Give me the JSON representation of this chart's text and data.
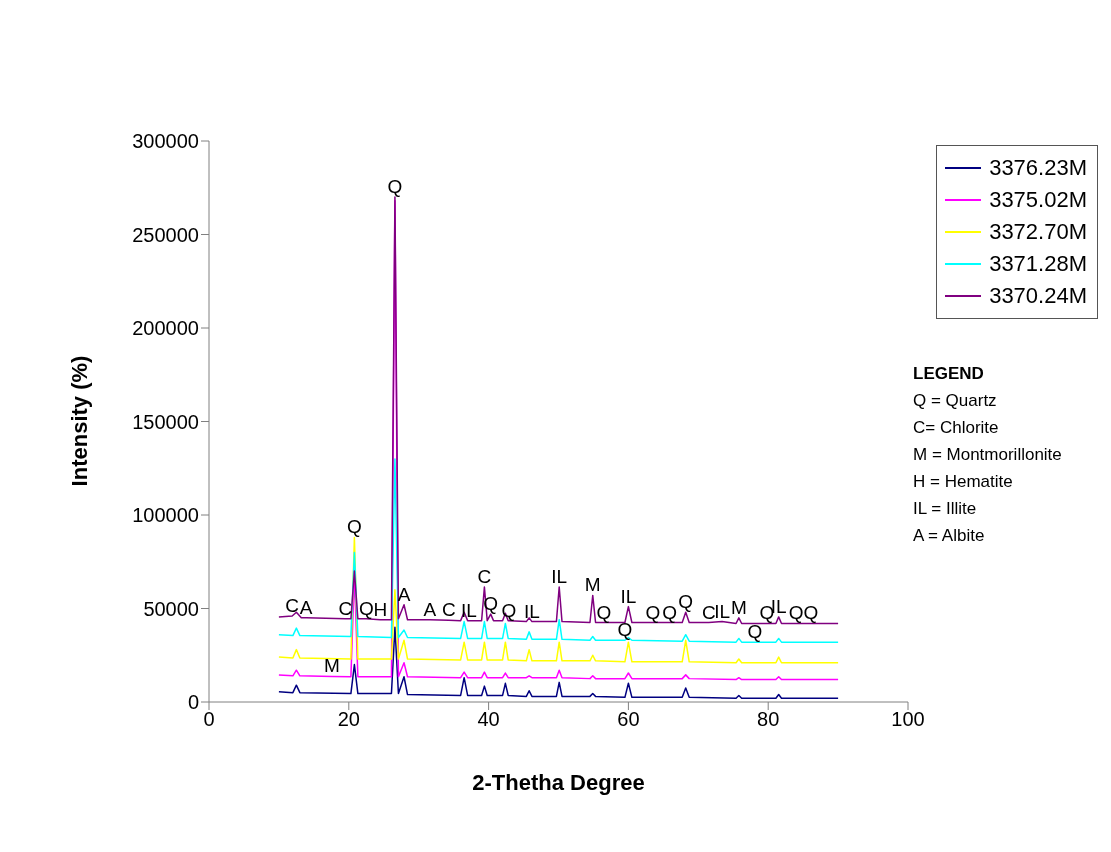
{
  "chart_data": {
    "type": "line",
    "xlabel": "2-Thetha Degree",
    "ylabel": "Intensity (%)",
    "xlim": [
      0,
      100
    ],
    "xticks": [
      0,
      20,
      40,
      60,
      80,
      100
    ],
    "ylim": [
      0,
      300000
    ],
    "yticks": [
      0,
      50000,
      100000,
      150000,
      200000,
      250000,
      300000
    ],
    "grid": false,
    "legend": "top right",
    "marker": "none",
    "line_style": "solid",
    "x": [
      10,
      12.0,
      12.5,
      13.0,
      20.3,
      20.8,
      21.3,
      26.1,
      26.6,
      27.1,
      27.9,
      28.4,
      36.0,
      36.5,
      37.0,
      39.0,
      39.4,
      39.8,
      42.0,
      42.4,
      42.8,
      45.4,
      45.8,
      46.2,
      49.7,
      50.1,
      50.5,
      54.5,
      54.9,
      55.3,
      59.5,
      60,
      60.5,
      67.7,
      68.2,
      68.7,
      75.4,
      75.8,
      76.2,
      81.1,
      81.5,
      81.9,
      90
    ],
    "series": [
      {
        "name": "3376.23M",
        "color": "#000080",
        "values": [
          5500,
          5000,
          9000,
          5000,
          4500,
          20000,
          4500,
          4500,
          40000,
          4500,
          13500,
          4000,
          3500,
          13000,
          3500,
          3500,
          8500,
          3500,
          3500,
          10000,
          3500,
          3000,
          6000,
          3000,
          3000,
          10500,
          3000,
          3000,
          4500,
          3000,
          2500,
          10000,
          2500,
          2500,
          7500,
          2500,
          2000,
          3500,
          2000,
          2000,
          4000,
          2000,
          2000
        ]
      },
      {
        "name": "3375.02M",
        "color": "#ff00ff",
        "x": [
          10,
          12.0,
          12.5,
          13.0,
          17.6,
          20.3,
          20.8,
          21.3,
          26.1,
          26.6,
          27.1,
          27.9,
          28.4,
          36.0,
          36.5,
          37.0,
          39.0,
          39.4,
          39.8,
          42.0,
          42.4,
          42.8,
          45.4,
          45.8,
          46.2,
          49.7,
          50.1,
          50.5,
          54.5,
          54.9,
          55.3,
          59.5,
          60,
          60.5,
          67.7,
          68.2,
          68.7,
          75.4,
          75.8,
          76.2,
          81.1,
          81.5,
          81.9,
          90
        ],
        "values": [
          14500,
          14000,
          17000,
          14000,
          13700,
          13500,
          68000,
          13500,
          13500,
          268000,
          13500,
          21000,
          13500,
          13000,
          16000,
          13000,
          13000,
          16000,
          13000,
          13000,
          15500,
          13000,
          13000,
          14000,
          13000,
          13000,
          17000,
          13000,
          12500,
          14000,
          12500,
          12500,
          15500,
          12500,
          12500,
          14500,
          12500,
          12000,
          13000,
          12000,
          12000,
          13500,
          12000,
          12000
        ]
      },
      {
        "name": "3372.70M",
        "color": "#ffff00",
        "values": [
          24000,
          23500,
          28000,
          23500,
          23000,
          88000,
          23000,
          23000,
          60000,
          23000,
          33000,
          23000,
          22500,
          32000,
          22500,
          22500,
          32000,
          22500,
          22500,
          32000,
          22500,
          22000,
          28000,
          22000,
          22000,
          32000,
          22000,
          22000,
          25000,
          22000,
          21500,
          32000,
          21500,
          21500,
          33000,
          21500,
          21000,
          23000,
          21000,
          21000,
          24000,
          21000,
          21000
        ]
      },
      {
        "name": "3371.28M",
        "color": "#00ffff",
        "x": [
          10,
          12.0,
          12.5,
          13.0,
          20.3,
          20.8,
          21.3,
          26.1,
          26.6,
          27.1,
          27.9,
          28.4,
          36.0,
          36.5,
          37.0,
          39.0,
          39.4,
          39.8,
          42.0,
          42.4,
          42.8,
          45.4,
          45.8,
          46.2,
          49.7,
          50.1,
          50.5,
          54.5,
          54.9,
          55.3,
          59.5,
          60,
          60.5,
          67.7,
          68.2,
          68.7,
          75.4,
          75.8,
          76.2,
          78.1,
          81.1,
          81.5,
          81.9,
          90
        ],
        "values": [
          36000,
          35500,
          39500,
          35500,
          35000,
          80000,
          35000,
          34500,
          130000,
          34500,
          38500,
          34500,
          34000,
          43000,
          34000,
          34000,
          43000,
          34000,
          34000,
          42000,
          34000,
          33500,
          37500,
          33500,
          33500,
          44000,
          33500,
          33000,
          35000,
          33000,
          33000,
          34500,
          33000,
          32500,
          36000,
          32500,
          32000,
          34000,
          32000,
          32000,
          32000,
          34000,
          32000,
          32000
        ]
      },
      {
        "name": "3370.24M",
        "color": "#800080",
        "x": [
          10,
          11.9,
          12.5,
          13.2,
          13.9,
          19.5,
          20.3,
          20.8,
          21.3,
          22.5,
          24.5,
          26.1,
          26.6,
          27.1,
          27.9,
          28.4,
          31.6,
          34.3,
          36.0,
          36.5,
          37.0,
          37.2,
          39.0,
          39.4,
          39.8,
          40.3,
          40.7,
          42.0,
          42.4,
          42.8,
          42.9,
          45.4,
          45.8,
          46.2,
          49.7,
          50.1,
          50.5,
          54.5,
          54.9,
          55.3,
          56.5,
          59.5,
          60,
          60.5,
          63.5,
          65.9,
          67.7,
          68.2,
          68.7,
          71.5,
          73.4,
          75.4,
          75.8,
          76.2,
          79.8,
          81.1,
          81.5,
          81.9,
          84.0,
          86.1,
          90
        ],
        "values": [
          45500,
          46000,
          48000,
          45000,
          45000,
          44500,
          44500,
          70000,
          44500,
          44500,
          44000,
          44000,
          270000,
          44500,
          52000,
          44000,
          44000,
          43700,
          43500,
          48000,
          43500,
          43500,
          43500,
          61500,
          43500,
          47000,
          43500,
          43500,
          47500,
          43500,
          43500,
          43000,
          45000,
          43000,
          43000,
          61500,
          43000,
          42500,
          57000,
          42500,
          42500,
          42500,
          51000,
          42500,
          42500,
          42500,
          42500,
          48000,
          42500,
          42500,
          43000,
          42000,
          45000,
          42000,
          42000,
          42000,
          45500,
          42000,
          42000,
          42000,
          42000
        ]
      }
    ],
    "annotations": [
      {
        "text": "C",
        "x": 11.9,
        "y": 46000
      },
      {
        "text": "A",
        "x": 13.9,
        "y": 45000
      },
      {
        "text": "M",
        "x": 17.6,
        "y": 13700
      },
      {
        "text": "Q",
        "x": 20.8,
        "y": 88000
      },
      {
        "text": "C",
        "x": 19.5,
        "y": 44500
      },
      {
        "text": "Q",
        "x": 22.5,
        "y": 44500
      },
      {
        "text": "H",
        "x": 24.5,
        "y": 44000
      },
      {
        "text": "Q",
        "x": 26.6,
        "y": 270000
      },
      {
        "text": "A",
        "x": 27.9,
        "y": 52000
      },
      {
        "text": "A",
        "x": 31.6,
        "y": 44000
      },
      {
        "text": "C",
        "x": 34.3,
        "y": 43700
      },
      {
        "text": "IL",
        "x": 37.2,
        "y": 43500
      },
      {
        "text": "C",
        "x": 39.4,
        "y": 61500
      },
      {
        "text": "Q",
        "x": 40.3,
        "y": 47000
      },
      {
        "text": "Q",
        "x": 42.9,
        "y": 43500
      },
      {
        "text": "IL",
        "x": 46.2,
        "y": 43000
      },
      {
        "text": "IL",
        "x": 50.1,
        "y": 61500
      },
      {
        "text": "M",
        "x": 54.9,
        "y": 57000
      },
      {
        "text": "Q",
        "x": 56.5,
        "y": 42500
      },
      {
        "text": "IL",
        "x": 60,
        "y": 51000
      },
      {
        "text": "Q",
        "x": 59.5,
        "y": 33000
      },
      {
        "text": "Q",
        "x": 63.5,
        "y": 42500
      },
      {
        "text": "Q",
        "x": 65.9,
        "y": 42500
      },
      {
        "text": "Q",
        "x": 68.2,
        "y": 48000
      },
      {
        "text": "C",
        "x": 71.5,
        "y": 42500
      },
      {
        "text": "IL",
        "x": 73.4,
        "y": 43000
      },
      {
        "text": "M",
        "x": 75.8,
        "y": 45000
      },
      {
        "text": "Q",
        "x": 78.1,
        "y": 32000
      },
      {
        "text": "Q",
        "x": 79.8,
        "y": 42000
      },
      {
        "text": "IL",
        "x": 81.5,
        "y": 45500
      },
      {
        "text": "Q",
        "x": 84.0,
        "y": 42000
      },
      {
        "text": "Q",
        "x": 86.1,
        "y": 42000
      },
      "LEGEND",
      "Q = Quartz",
      "C= Chlorite",
      "M = Montmorillonite",
      "H = Hematite",
      "IL = Illite",
      "A = Albite"
    ]
  }
}
